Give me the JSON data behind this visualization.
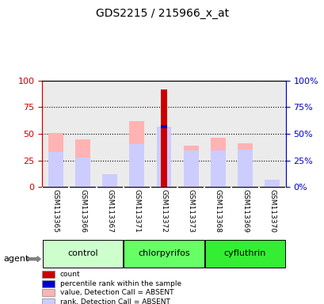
{
  "title": "GDS2215 / 215966_x_at",
  "samples": [
    "GSM113365",
    "GSM113366",
    "GSM113367",
    "GSM113371",
    "GSM113372",
    "GSM113373",
    "GSM113368",
    "GSM113369",
    "GSM113370"
  ],
  "groups": [
    {
      "name": "control",
      "color": "#ccffcc",
      "samples": [
        0,
        1,
        2
      ]
    },
    {
      "name": "chlorpyrifos",
      "color": "#66ff66",
      "samples": [
        3,
        4,
        5
      ]
    },
    {
      "name": "cyfluthrin",
      "color": "#33ee33",
      "samples": [
        6,
        7,
        8
      ]
    }
  ],
  "pink_bar_heights": [
    51,
    45,
    12,
    62,
    57,
    39,
    46,
    41,
    7
  ],
  "light_blue_bar_heights": [
    33,
    28,
    12,
    40,
    57,
    34,
    34,
    35,
    7
  ],
  "red_bar_heights": [
    0,
    0,
    0,
    0,
    92,
    0,
    0,
    0,
    0
  ],
  "blue_bar_heights": [
    0,
    0,
    0,
    0,
    57,
    0,
    0,
    0,
    0
  ],
  "blue_bar_thickness": 2,
  "ylim": [
    0,
    100
  ],
  "yticks": [
    0,
    25,
    50,
    75,
    100
  ],
  "left_axis_color": "#cc0000",
  "right_axis_color": "#0000cc",
  "bg_color": "#ffffff",
  "plot_bg_color": "#ebebeb",
  "grid_color": "#000000",
  "legend": [
    {
      "color": "#cc0000",
      "label": "count"
    },
    {
      "color": "#0000cc",
      "label": "percentile rank within the sample"
    },
    {
      "color": "#ffb3b3",
      "label": "value, Detection Call = ABSENT"
    },
    {
      "color": "#ccccff",
      "label": "rank, Detection Call = ABSENT"
    }
  ]
}
